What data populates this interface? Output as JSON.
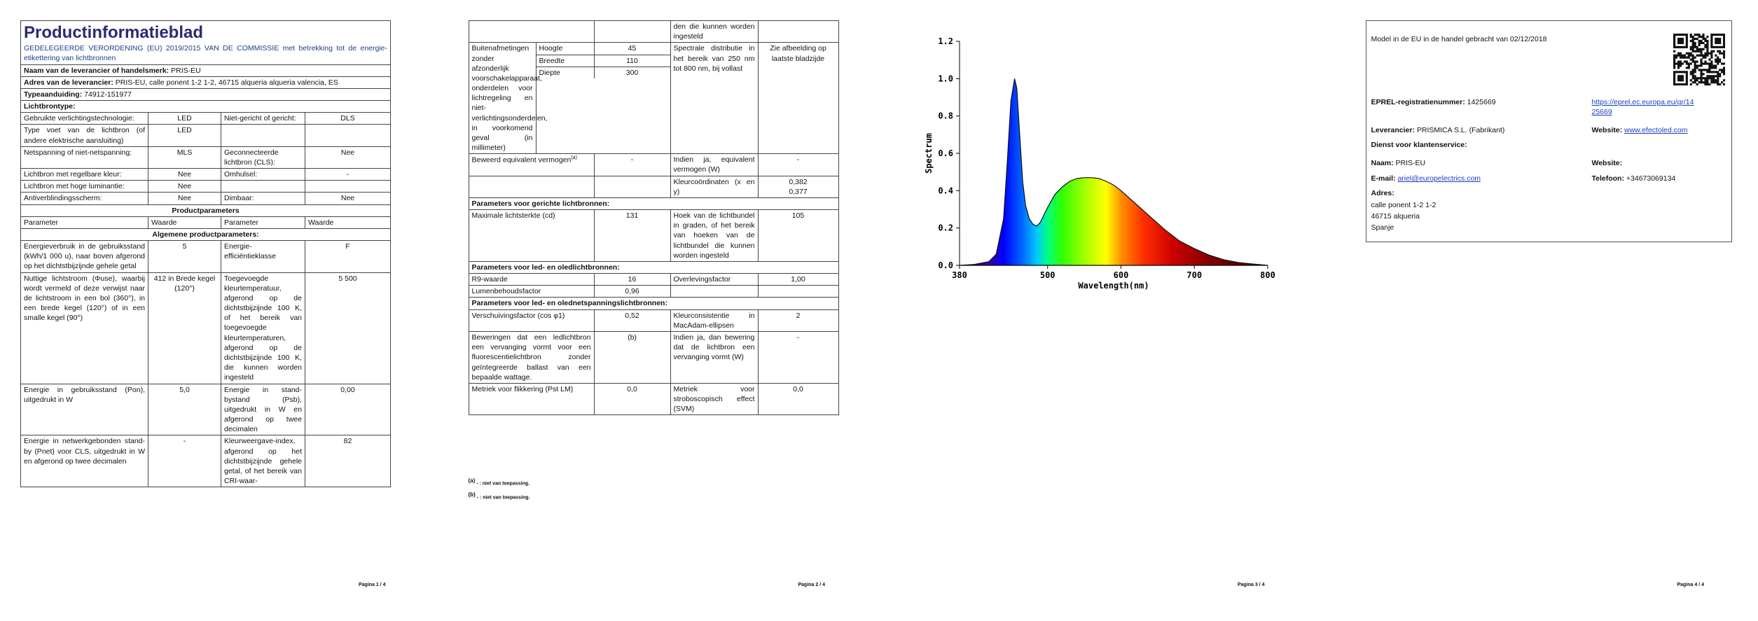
{
  "page1": {
    "title": "Productinformatieblad",
    "regulation": "GEDELEGEERDE VERORDENING (EU) 2019/2015 VAN DE COMMISSIE met betrekking tot de energie-etikettering van lichtbronnen",
    "supplier": {
      "label": "Naam van de leverancier of handelsmerk:",
      "value": "PRIS-EU"
    },
    "address": {
      "label": "Adres van de leverancier:",
      "value": "PRIS-EU, calle ponent 1-2 1-2, 46715 alqueria alqueria valencia, ES"
    },
    "model": {
      "label": "Typeaanduiding:",
      "value": "74912-151977"
    },
    "light_source_type": "Lichtbrontype:",
    "light_source_rows": [
      [
        "Gebruikte verlichtingstechnologie:",
        "LED",
        "Niet-gericht of gericht:",
        "DLS"
      ],
      [
        "Type voet van de lichtbron (of andere elektrische aansluiting)",
        "LED"
      ],
      [
        "Netspanning of niet-netspanning:",
        "MLS",
        "Geconnecteerde lichtbron (CLS):",
        "Nee"
      ],
      [
        "Lichtbron met regelbare kleur:",
        "Nee",
        "Omhulsel:",
        "-"
      ],
      [
        "Lichtbron met hoge luminantie:",
        "Nee"
      ],
      [
        "Antiverblindingsscherm:",
        "Nee",
        "Dimbaar:",
        "Nee"
      ]
    ],
    "product_parameters": "Productparameters",
    "columns": [
      "Parameter",
      "Waarde",
      "Parameter",
      "Waarde"
    ],
    "general_parameters": "Algemene productparameters:",
    "general_rows": [
      [
        "Energieverbruik in de gebruiksstand (kWh/1 000 u), naar boven afgerond op het dichtstbijzijnde gehele getal",
        "5",
        "Energie-efficiëntieklasse",
        "F"
      ],
      [
        "Nuttige lichtstroom (Φuse), waarbij wordt vermeld of deze verwijst naar de lichtstroom in een bol (360°), in een brede kegel (120°) of in een smalle kegel (90°)",
        "412 in Brede kegel (120°)",
        "Toegevoegde kleurtemperatuur, afgerond op de dichtstbijzijnde 100 K, of het bereik van toegevoegde kleurtemperaturen, afgerond op de dichtstbijzijnde 100 K, die kunnen worden ingesteld",
        "5 500"
      ],
      [
        "Energie in gebruiksstand (Pon), uitgedrukt in W",
        "5,0",
        "Energie in stand-bystand (Psb), uitgedrukt in W en afgerond op twee decimalen",
        "0,00"
      ],
      [
        "Energie in netwerkgebonden stand-by (Pnet) voor CLS, uitgedrukt in W en afgerond op twee decimalen",
        "-",
        "Kleurweergave-index, afgerond op het dichtstbijzijnde gehele getal, of het bereik van CRI-waar-",
        "82"
      ]
    ],
    "footer": "Pagina 1 / 4"
  },
  "page2": {
    "continued_text": "den die kunnen worden ingesteld",
    "dimensions": {
      "label": "Buitenafmetingen zonder afzonderlijk voorschakelapparaat, onderdelen voor lichtregeling en niet-verlichtingsonderdelen, in voorkomend geval (in millimeter)",
      "rows": [
        [
          "Hoogte",
          "45"
        ],
        [
          "Breedte",
          "110"
        ],
        [
          "Diepte",
          "300"
        ]
      ]
    },
    "spectral": {
      "label": "Spectrale distributie in het bereik van 250 nm tot 800 nm, bij vollast",
      "value": "Zie afbeelding op laatste bladzijde"
    },
    "equivalent": {
      "label": "Beweerd equivalent vermogen",
      "note": "(a)",
      "value": "-",
      "label2": "Indien ja, equivalent vermogen (W)",
      "value2": "-"
    },
    "chromaticity": {
      "label": "Kleurcoördinaten (x en y)",
      "values": [
        "0,382",
        "0,377"
      ]
    },
    "directional_heading": "Parameters voor gerichte lichtbronnen:",
    "directional_rows": [
      [
        "Maximale lichtsterkte (cd)",
        "131",
        "Hoek van de lichtbundel in graden, of het bereik van hoeken van de lichtbundel die kunnen worden ingesteld",
        "105"
      ]
    ],
    "led_heading": "Parameters voor led- en oledlichtbronnen:",
    "led_rows": [
      [
        "R9-waarde",
        "16",
        "Overlevingsfactor",
        "1,00"
      ],
      [
        "Lumenbehoudsfactor",
        "0,96"
      ]
    ],
    "mains_heading": "Parameters voor led- en olednetspanningslichtbronnen:",
    "mains_rows": [
      [
        "Verschuivingsfactor (cos φ1)",
        "0,52",
        "Kleurconsistentie in MacAdam-ellipsen",
        "2"
      ],
      [
        "Beweringen dat een ledlichtbron een vervanging vormt voor een fluorescentielichtbron zonder geïntegreerde ballast van een bepaalde wattage.",
        "(b)",
        "Indien ja, dan bewering dat de lichtbron een vervanging vormt (W)",
        "-"
      ],
      [
        "Metriek voor flikkering (Pst LM)",
        "0,0",
        "Metriek voor stroboscopisch effect (SVM)",
        "0,0"
      ]
    ],
    "footnotes": [
      {
        "mark": "(a)",
        "text": "- : niet van toepassing."
      },
      {
        "mark": "(b)",
        "text": "- : niet van toepassing."
      }
    ],
    "footer": "Pagina 2 / 4"
  },
  "page3": {
    "chart_data": {
      "type": "line",
      "ylabel": "Spectrum",
      "xlabel": "Wavelength(nm)",
      "x": [
        380,
        400,
        420,
        430,
        440,
        445,
        450,
        455,
        458,
        462,
        466,
        470,
        475,
        480,
        485,
        490,
        500,
        510,
        520,
        530,
        540,
        550,
        560,
        570,
        580,
        590,
        600,
        620,
        640,
        660,
        680,
        700,
        720,
        740,
        760,
        780,
        800
      ],
      "values": [
        0,
        0.005,
        0.02,
        0.06,
        0.25,
        0.55,
        0.88,
        1.0,
        0.95,
        0.7,
        0.45,
        0.32,
        0.25,
        0.22,
        0.21,
        0.23,
        0.31,
        0.38,
        0.42,
        0.45,
        0.465,
        0.47,
        0.47,
        0.465,
        0.45,
        0.43,
        0.4,
        0.33,
        0.26,
        0.19,
        0.13,
        0.09,
        0.055,
        0.03,
        0.015,
        0.007,
        0
      ],
      "xlim": [
        380,
        800
      ],
      "xticks": [
        380,
        500,
        600,
        700,
        800
      ],
      "ylim": [
        0,
        1.2
      ],
      "yticks": [
        {
          "value": 0,
          "label": "0.0"
        },
        0.2,
        0.4,
        0.6,
        0.8,
        {
          "value": 1,
          "label": "1.0"
        },
        1.2
      ]
    },
    "footer": "Pagina 3 / 4"
  },
  "page4": {
    "placed_on_market": "Model in de EU in de handel gebracht van 02/12/2018",
    "eprel": {
      "label": "EPREL-registratienummer:",
      "value": "1425669",
      "link": "https://eprel.ec.europa.eu/qr/1425669"
    },
    "supplier": {
      "label": "Leverancier:",
      "value": "PRISMICA S.L. (Fabrikant)"
    },
    "supplier_website": {
      "label": "Website:",
      "value": "www.efectoled.com"
    },
    "service_heading": "Dienst voor klantenservice:",
    "service_name": {
      "label": "Naam:",
      "value": "PRIS-EU"
    },
    "service_website": {
      "label": "Website:"
    },
    "service_email": {
      "label": "E-mail:",
      "value": "ariel@europelectrics.com"
    },
    "service_phone": {
      "label": "Telefoon:",
      "value": "+34673069134"
    },
    "address_label": "Adres:",
    "address_lines": [
      "calle ponent 1-2 1-2",
      "46715 alqueria",
      "Spanje"
    ],
    "footer": "Pagina 4 / 4"
  }
}
